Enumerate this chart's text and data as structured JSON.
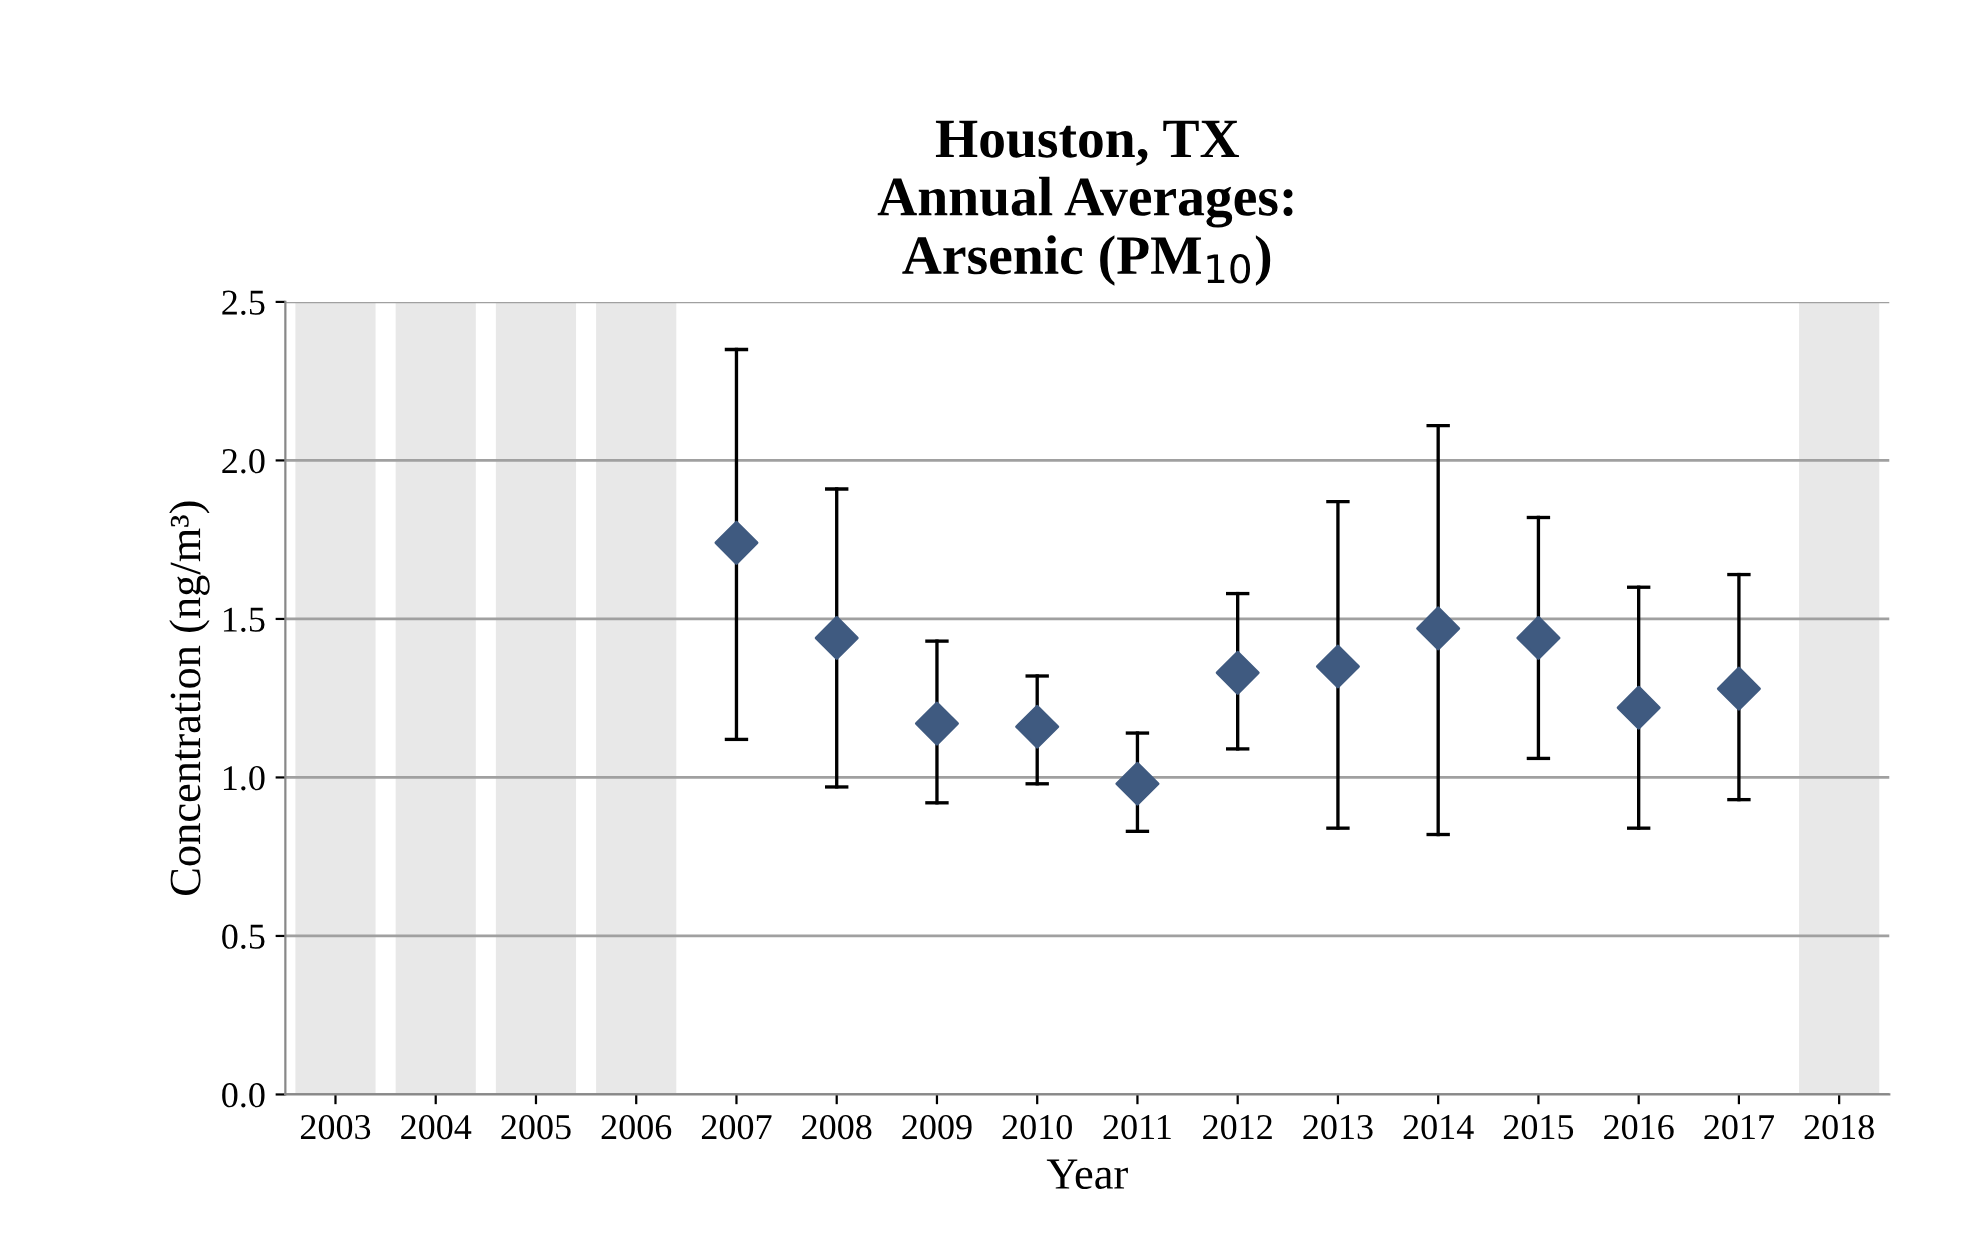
{
  "chart_data": {
    "type": "scatter",
    "title": "Houston, TX\nAnnual Averages:\nArsenic (PM$_{10}$)",
    "xlabel": "Year",
    "ylabel": "Concentration (ng/m³)",
    "categories": [
      "2003",
      "2004",
      "2005",
      "2006",
      "2007",
      "2008",
      "2009",
      "2010",
      "2011",
      "2012",
      "2013",
      "2014",
      "2015",
      "2016",
      "2017",
      "2018"
    ],
    "series": [
      {
        "color": "#3f5a80",
        "values": [
          null,
          null,
          null,
          null,
          1.74,
          1.44,
          1.17,
          1.16,
          0.98,
          1.33,
          1.35,
          1.47,
          1.44,
          1.22,
          1.28,
          null
        ],
        "errors": [
          null,
          null,
          null,
          null,
          [
            1.12,
            2.35
          ],
          [
            0.97,
            1.91
          ],
          [
            0.92,
            1.43
          ],
          [
            0.98,
            1.32
          ],
          [
            0.83,
            1.14
          ],
          [
            1.09,
            1.58
          ],
          [
            0.84,
            1.87
          ],
          [
            0.82,
            2.11
          ],
          [
            1.06,
            1.82
          ],
          [
            0.84,
            1.6
          ],
          [
            0.93,
            1.64
          ],
          null
        ]
      }
    ],
    "bands": [
      {
        "axis": "x",
        "from": "2003",
        "to": "2003",
        "color": "#e8e8e8"
      },
      {
        "axis": "x",
        "from": "2004",
        "to": "2004",
        "color": "#e8e8e8"
      },
      {
        "axis": "x",
        "from": "2005",
        "to": "2005",
        "color": "#e8e8e8"
      },
      {
        "axis": "x",
        "from": "2006",
        "to": "2006",
        "color": "#e8e8e8"
      },
      {
        "axis": "x",
        "from": "2018",
        "to": "2018",
        "color": "#e8e8e8"
      }
    ],
    "ylim": [
      0,
      2.5
    ],
    "yticks": [
      {
        "value": 0,
        "label": "0.0"
      },
      {
        "value": 0.5,
        "label": "0.5"
      },
      {
        "value": 1,
        "label": "1.0"
      },
      {
        "value": 1.5,
        "label": "1.5"
      },
      {
        "value": 2,
        "label": "2.0"
      },
      {
        "value": 2.5,
        "label": "2.5"
      }
    ],
    "grid": "y",
    "marker": "diamond",
    "legend": false
  }
}
